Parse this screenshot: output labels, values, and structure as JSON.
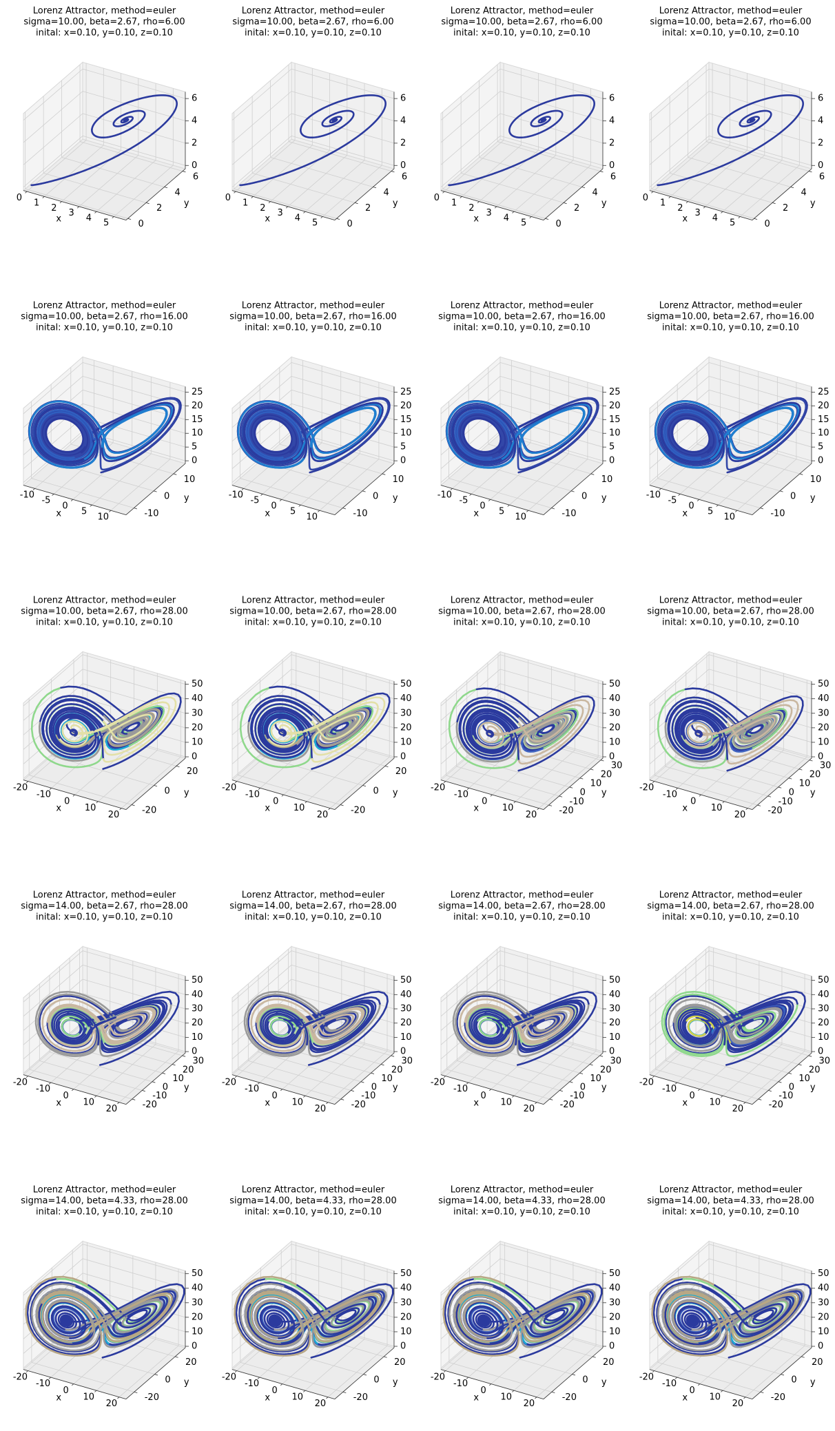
{
  "chart_data": [
    {
      "type": "line3d",
      "title": [
        "Lorenz Attractor, method=euler",
        "sigma=10.00, beta=2.67, rho=6.00",
        "inital: x=0.10, y=0.10, z=0.10"
      ],
      "xlabel": "x",
      "ylabel": "y",
      "params": {
        "sigma": 10,
        "beta": 2.67,
        "rho": 6,
        "x0": 0.1,
        "y0": 0.1,
        "z0": 0.1
      },
      "xlim": [
        -0.2,
        5.7
      ],
      "ylim": [
        -0.2,
        6.3
      ],
      "zlim": [
        -0.3,
        6.6
      ],
      "xticks": [
        0,
        1,
        2,
        3,
        4,
        5
      ],
      "yticks": [
        0,
        2,
        4,
        6
      ],
      "zticks": [
        0,
        2,
        4,
        6
      ],
      "colors": [
        "#2b3a9e",
        "#3347a8",
        "#3f63c0",
        "#2b3a9e"
      ]
    },
    {
      "type": "line3d",
      "title": [
        "Lorenz Attractor, method=euler",
        "sigma=10.00, beta=2.67, rho=6.00",
        "inital: x=0.10, y=0.10, z=0.10"
      ],
      "xlabel": "x",
      "ylabel": "y",
      "params": {
        "sigma": 10,
        "beta": 2.67,
        "rho": 6,
        "x0": 0.1,
        "y0": 0.1,
        "z0": 0.1
      },
      "xlim": [
        -0.2,
        5.7
      ],
      "ylim": [
        -0.2,
        6.3
      ],
      "zlim": [
        -0.3,
        6.6
      ],
      "xticks": [
        0,
        1,
        2,
        3,
        4,
        5
      ],
      "yticks": [
        0,
        2,
        4,
        6
      ],
      "zticks": [
        0,
        2,
        4,
        6
      ],
      "colors": [
        "#2b3a9e",
        "#3347a8",
        "#3f63c0",
        "#2b3a9e"
      ]
    },
    {
      "type": "line3d",
      "title": [
        "Lorenz Attractor, method=euler",
        "sigma=10.00, beta=2.67, rho=6.00",
        "inital: x=0.10, y=0.10, z=0.10"
      ],
      "xlabel": "x",
      "ylabel": "y",
      "params": {
        "sigma": 10,
        "beta": 2.67,
        "rho": 6,
        "x0": 0.1,
        "y0": 0.1,
        "z0": 0.1
      },
      "xlim": [
        -0.2,
        5.7
      ],
      "ylim": [
        -0.2,
        6.3
      ],
      "zlim": [
        -0.3,
        6.6
      ],
      "xticks": [
        0,
        1,
        2,
        3,
        4,
        5
      ],
      "yticks": [
        0,
        2,
        4,
        6
      ],
      "zticks": [
        0,
        2,
        4,
        6
      ],
      "colors": [
        "#2b3a9e",
        "#3347a8",
        "#3f63c0",
        "#2b3a9e"
      ]
    },
    {
      "type": "line3d",
      "title": [
        "Lorenz Attractor, method=euler",
        "sigma=10.00, beta=2.67, rho=6.00",
        "inital: x=0.10, y=0.10, z=0.10"
      ],
      "xlabel": "x",
      "ylabel": "y",
      "params": {
        "sigma": 10,
        "beta": 2.67,
        "rho": 6,
        "x0": 0.1,
        "y0": 0.1,
        "z0": 0.1
      },
      "xlim": [
        -0.2,
        5.7
      ],
      "ylim": [
        -0.2,
        6.3
      ],
      "zlim": [
        -0.3,
        6.6
      ],
      "xticks": [
        0,
        1,
        2,
        3,
        4,
        5
      ],
      "yticks": [
        0,
        2,
        4,
        6
      ],
      "zticks": [
        0,
        2,
        4,
        6
      ],
      "colors": [
        "#2b3a9e",
        "#3347a8",
        "#3f63c0",
        "#2b3a9e"
      ]
    },
    {
      "type": "line3d",
      "title": [
        "Lorenz Attractor, method=euler",
        "sigma=10.00, beta=2.67, rho=16.00",
        "inital: x=0.10, y=0.10, z=0.10"
      ],
      "xlabel": "x",
      "ylabel": "y",
      "params": {
        "sigma": 10,
        "beta": 2.67,
        "rho": 16,
        "x0": 0.1,
        "y0": 0.1,
        "z0": 0.1
      },
      "xlim": [
        -13,
        14
      ],
      "ylim": [
        -14,
        16
      ],
      "zlim": [
        -1,
        27
      ],
      "xticks": [
        -10,
        -5,
        0,
        5,
        10
      ],
      "yticks": [
        -10,
        0,
        10
      ],
      "zticks": [
        0,
        5,
        10,
        15,
        20,
        25
      ],
      "colors": [
        "#2b3a9e",
        "#3347a8",
        "#2f5ebf",
        "#1f7fd0"
      ]
    },
    {
      "type": "line3d",
      "title": [
        "Lorenz Attractor, method=euler",
        "sigma=10.00, beta=2.67, rho=16.00",
        "inital: x=0.10, y=0.10, z=0.10"
      ],
      "xlabel": "x",
      "ylabel": "y",
      "params": {
        "sigma": 10,
        "beta": 2.67,
        "rho": 16,
        "x0": 0.1,
        "y0": 0.1,
        "z0": 0.1
      },
      "xlim": [
        -13,
        14
      ],
      "ylim": [
        -14,
        16
      ],
      "zlim": [
        -1,
        27
      ],
      "xticks": [
        -10,
        -5,
        0,
        5,
        10
      ],
      "yticks": [
        -10,
        0,
        10
      ],
      "zticks": [
        0,
        5,
        10,
        15,
        20,
        25
      ],
      "colors": [
        "#2b3a9e",
        "#3347a8",
        "#2f5ebf",
        "#1f7fd0"
      ]
    },
    {
      "type": "line3d",
      "title": [
        "Lorenz Attractor, method=euler",
        "sigma=10.00, beta=2.67, rho=16.00",
        "inital: x=0.10, y=0.10, z=0.10"
      ],
      "xlabel": "x",
      "ylabel": "y",
      "params": {
        "sigma": 10,
        "beta": 2.67,
        "rho": 16,
        "x0": 0.1,
        "y0": 0.1,
        "z0": 0.1
      },
      "xlim": [
        -13,
        14
      ],
      "ylim": [
        -14,
        16
      ],
      "zlim": [
        -1,
        27
      ],
      "xticks": [
        -10,
        -5,
        0,
        5,
        10
      ],
      "yticks": [
        -10,
        0,
        10
      ],
      "zticks": [
        0,
        5,
        10,
        15,
        20,
        25
      ],
      "colors": [
        "#2b3a9e",
        "#3347a8",
        "#2f5ebf",
        "#1f7fd0"
      ]
    },
    {
      "type": "line3d",
      "title": [
        "Lorenz Attractor, method=euler",
        "sigma=10.00, beta=2.67, rho=16.00",
        "inital: x=0.10, y=0.10, z=0.10"
      ],
      "xlabel": "x",
      "ylabel": "y",
      "params": {
        "sigma": 10,
        "beta": 2.67,
        "rho": 16,
        "x0": 0.1,
        "y0": 0.1,
        "z0": 0.1
      },
      "xlim": [
        -13,
        14
      ],
      "ylim": [
        -14,
        16
      ],
      "zlim": [
        -1,
        27
      ],
      "xticks": [
        -10,
        -5,
        0,
        5,
        10
      ],
      "yticks": [
        -10,
        0,
        10
      ],
      "zticks": [
        0,
        5,
        10,
        15,
        20,
        25
      ],
      "colors": [
        "#2b3a9e",
        "#3347a8",
        "#2f5ebf",
        "#1f7fd0"
      ]
    },
    {
      "type": "line3d",
      "title": [
        "Lorenz Attractor, method=euler",
        "sigma=10.00, beta=2.67, rho=28.00",
        "inital: x=0.10, y=0.10, z=0.10"
      ],
      "xlabel": "x",
      "ylabel": "y",
      "params": {
        "sigma": 10,
        "beta": 2.67,
        "rho": 28,
        "x0": 0.1,
        "y0": 0.1,
        "z0": 0.1
      },
      "xlim": [
        -22,
        22
      ],
      "ylim": [
        -25,
        28
      ],
      "zlim": [
        -1,
        52
      ],
      "xticks": [
        -20,
        -10,
        0,
        10,
        20
      ],
      "yticks": [
        -20,
        0,
        20
      ],
      "zticks": [
        0,
        10,
        20,
        30,
        40,
        50
      ],
      "colors": [
        "#2b3a9e",
        "#1ba9d4",
        "#8fd88c",
        "#b8a785",
        "#9a9a9a",
        "#e3e0a8"
      ]
    },
    {
      "type": "line3d",
      "title": [
        "Lorenz Attractor, method=euler",
        "sigma=10.00, beta=2.67, rho=28.00",
        "inital: x=0.10, y=0.10, z=0.10"
      ],
      "xlabel": "x",
      "ylabel": "y",
      "params": {
        "sigma": 10,
        "beta": 2.67,
        "rho": 28,
        "x0": 0.1,
        "y0": 0.1,
        "z0": 0.1
      },
      "xlim": [
        -22,
        22
      ],
      "ylim": [
        -25,
        28
      ],
      "zlim": [
        -1,
        52
      ],
      "xticks": [
        -20,
        -10,
        0,
        10,
        20
      ],
      "yticks": [
        -20,
        0,
        20
      ],
      "zticks": [
        0,
        10,
        20,
        30,
        40,
        50
      ],
      "colors": [
        "#2b3a9e",
        "#1ba9d4",
        "#8fd88c",
        "#b8a785",
        "#9a9a9a",
        "#e3e0a8"
      ]
    },
    {
      "type": "line3d",
      "title": [
        "Lorenz Attractor, method=euler",
        "sigma=10.00, beta=2.67, rho=28.00",
        "inital: x=0.10, y=0.10, z=0.10"
      ],
      "xlabel": "x",
      "ylabel": "y",
      "params": {
        "sigma": 10,
        "beta": 2.67,
        "rho": 28,
        "x0": 0.1,
        "y0": 0.1,
        "z0": 0.1
      },
      "xlim": [
        -22,
        22
      ],
      "ylim": [
        -25,
        32
      ],
      "zlim": [
        -1,
        52
      ],
      "xticks": [
        -20,
        -10,
        0,
        10,
        20
      ],
      "yticks": [
        -20,
        -10,
        0,
        10,
        20,
        30
      ],
      "zticks": [
        0,
        10,
        20,
        30,
        40,
        50
      ],
      "colors": [
        "#2b3a9e",
        "#3f63c0",
        "#8fd88c",
        "#b8d8a0",
        "#9a9a9a",
        "#c9b7a0"
      ]
    },
    {
      "type": "line3d",
      "title": [
        "Lorenz Attractor, method=euler",
        "sigma=10.00, beta=2.67, rho=28.00",
        "inital: x=0.10, y=0.10, z=0.10"
      ],
      "xlabel": "x",
      "ylabel": "y",
      "params": {
        "sigma": 10,
        "beta": 2.67,
        "rho": 28,
        "x0": 0.1,
        "y0": 0.1,
        "z0": 0.1
      },
      "xlim": [
        -22,
        22
      ],
      "ylim": [
        -25,
        32
      ],
      "zlim": [
        -1,
        52
      ],
      "xticks": [
        -20,
        -10,
        0,
        10,
        20
      ],
      "yticks": [
        -20,
        -10,
        0,
        10,
        20,
        30
      ],
      "zticks": [
        0,
        10,
        20,
        30,
        40,
        50
      ],
      "colors": [
        "#2b3a9e",
        "#3f63c0",
        "#8fd88c",
        "#b8d8a0",
        "#9a9a9a",
        "#c9b7a0"
      ]
    },
    {
      "type": "line3d",
      "title": [
        "Lorenz Attractor, method=euler",
        "sigma=14.00, beta=2.67, rho=28.00",
        "inital: x=0.10, y=0.10, z=0.10"
      ],
      "xlabel": "x",
      "ylabel": "y",
      "params": {
        "sigma": 14,
        "beta": 2.67,
        "rho": 28,
        "x0": 0.1,
        "y0": 0.1,
        "z0": 0.1
      },
      "xlim": [
        -22,
        23
      ],
      "ylim": [
        -26,
        33
      ],
      "zlim": [
        -1,
        53
      ],
      "xticks": [
        -20,
        -10,
        0,
        10,
        20
      ],
      "yticks": [
        -20,
        -10,
        0,
        10,
        20,
        30
      ],
      "zticks": [
        0,
        10,
        20,
        30,
        40,
        50
      ],
      "colors": [
        "#2b3a9e",
        "#3f63c0",
        "#8fd88c",
        "#9a9a9a",
        "#b8d8a0",
        "#c9b7a0"
      ]
    },
    {
      "type": "line3d",
      "title": [
        "Lorenz Attractor, method=euler",
        "sigma=14.00, beta=2.67, rho=28.00",
        "inital: x=0.10, y=0.10, z=0.10"
      ],
      "xlabel": "x",
      "ylabel": "y",
      "params": {
        "sigma": 14,
        "beta": 2.67,
        "rho": 28,
        "x0": 0.1,
        "y0": 0.1,
        "z0": 0.1
      },
      "xlim": [
        -22,
        23
      ],
      "ylim": [
        -26,
        33
      ],
      "zlim": [
        -1,
        53
      ],
      "xticks": [
        -20,
        -10,
        0,
        10,
        20
      ],
      "yticks": [
        -20,
        -10,
        0,
        10,
        20,
        30
      ],
      "zticks": [
        0,
        10,
        20,
        30,
        40,
        50
      ],
      "colors": [
        "#2b3a9e",
        "#3f63c0",
        "#8fd88c",
        "#9a9a9a",
        "#b8d8a0",
        "#c9b7a0"
      ]
    },
    {
      "type": "line3d",
      "title": [
        "Lorenz Attractor, method=euler",
        "sigma=14.00, beta=2.67, rho=28.00",
        "inital: x=0.10, y=0.10, z=0.10"
      ],
      "xlabel": "x",
      "ylabel": "y",
      "params": {
        "sigma": 14,
        "beta": 2.67,
        "rho": 28,
        "x0": 0.1,
        "y0": 0.1,
        "z0": 0.1
      },
      "xlim": [
        -22,
        23
      ],
      "ylim": [
        -26,
        33
      ],
      "zlim": [
        -1,
        53
      ],
      "xticks": [
        -20,
        -10,
        0,
        10,
        20
      ],
      "yticks": [
        -20,
        -10,
        0,
        10,
        20,
        30
      ],
      "zticks": [
        0,
        10,
        20,
        30,
        40,
        50
      ],
      "colors": [
        "#2b3a9e",
        "#3f63c0",
        "#8fd88c",
        "#9a9a9a",
        "#b8d8a0",
        "#c9b7a0"
      ]
    },
    {
      "type": "line3d",
      "title": [
        "Lorenz Attractor, method=euler",
        "sigma=14.00, beta=2.67, rho=28.00",
        "inital: x=0.10, y=0.10, z=0.10"
      ],
      "xlabel": "x",
      "ylabel": "y",
      "params": {
        "sigma": 14,
        "beta": 2.67,
        "rho": 28,
        "x0": 0.1,
        "y0": 0.1,
        "z0": 0.1
      },
      "xlim": [
        -22,
        23
      ],
      "ylim": [
        -26,
        33
      ],
      "zlim": [
        -1,
        53
      ],
      "xticks": [
        -20,
        -10,
        0,
        10,
        20
      ],
      "yticks": [
        -20,
        -10,
        0,
        10,
        20,
        30
      ],
      "zticks": [
        0,
        10,
        20,
        30,
        40,
        50
      ],
      "colors": [
        "#2b3a9e",
        "#1ba9d4",
        "#d4d44a",
        "#8fd88c",
        "#3f63c0",
        "#9a9a9a"
      ]
    },
    {
      "type": "line3d",
      "title": [
        "Lorenz Attractor, method=euler",
        "sigma=14.00, beta=4.33, rho=28.00",
        "inital: x=0.10, y=0.10, z=0.10"
      ],
      "xlabel": "x",
      "ylabel": "y",
      "params": {
        "sigma": 14,
        "beta": 4.33,
        "rho": 28,
        "x0": 0.1,
        "y0": 0.1,
        "z0": 0.1
      },
      "xlim": [
        -22,
        23
      ],
      "ylim": [
        -28,
        30
      ],
      "zlim": [
        -1,
        52
      ],
      "xticks": [
        -20,
        -10,
        0,
        10,
        20
      ],
      "yticks": [
        -20,
        0,
        20
      ],
      "zticks": [
        0,
        10,
        20,
        30,
        40,
        50
      ],
      "colors": [
        "#2b3a9e",
        "#3f63c0",
        "#1ba9d4",
        "#8fd88c",
        "#b8a785",
        "#9a9a9a"
      ]
    },
    {
      "type": "line3d",
      "title": [
        "Lorenz Attractor, method=euler",
        "sigma=14.00, beta=4.33, rho=28.00",
        "inital: x=0.10, y=0.10, z=0.10"
      ],
      "xlabel": "x",
      "ylabel": "y",
      "params": {
        "sigma": 14,
        "beta": 4.33,
        "rho": 28,
        "x0": 0.1,
        "y0": 0.1,
        "z0": 0.1
      },
      "xlim": [
        -22,
        23
      ],
      "ylim": [
        -28,
        30
      ],
      "zlim": [
        -1,
        52
      ],
      "xticks": [
        -20,
        -10,
        0,
        10,
        20
      ],
      "yticks": [
        -20,
        0,
        20
      ],
      "zticks": [
        0,
        10,
        20,
        30,
        40,
        50
      ],
      "colors": [
        "#2b3a9e",
        "#3f63c0",
        "#1ba9d4",
        "#8fd88c",
        "#b8a785",
        "#9a9a9a"
      ]
    },
    {
      "type": "line3d",
      "title": [
        "Lorenz Attractor, method=euler",
        "sigma=14.00, beta=4.33, rho=28.00",
        "inital: x=0.10, y=0.10, z=0.10"
      ],
      "xlabel": "x",
      "ylabel": "y",
      "params": {
        "sigma": 14,
        "beta": 4.33,
        "rho": 28,
        "x0": 0.1,
        "y0": 0.1,
        "z0": 0.1
      },
      "xlim": [
        -22,
        23
      ],
      "ylim": [
        -28,
        30
      ],
      "zlim": [
        -1,
        52
      ],
      "xticks": [
        -20,
        -10,
        0,
        10,
        20
      ],
      "yticks": [
        -20,
        0,
        20
      ],
      "zticks": [
        0,
        10,
        20,
        30,
        40,
        50
      ],
      "colors": [
        "#2b3a9e",
        "#3f63c0",
        "#1ba9d4",
        "#8fd88c",
        "#b8a785",
        "#9a9a9a"
      ]
    },
    {
      "type": "line3d",
      "title": [
        "Lorenz Attractor, method=euler",
        "sigma=14.00, beta=4.33, rho=28.00",
        "inital: x=0.10, y=0.10, z=0.10"
      ],
      "xlabel": "x",
      "ylabel": "y",
      "params": {
        "sigma": 14,
        "beta": 4.33,
        "rho": 28,
        "x0": 0.1,
        "y0": 0.1,
        "z0": 0.1
      },
      "xlim": [
        -22,
        23
      ],
      "ylim": [
        -28,
        30
      ],
      "zlim": [
        -1,
        52
      ],
      "xticks": [
        -20,
        -10,
        0,
        10,
        20
      ],
      "yticks": [
        -20,
        0,
        20
      ],
      "zticks": [
        0,
        10,
        20,
        30,
        40,
        50
      ],
      "colors": [
        "#2b3a9e",
        "#3f63c0",
        "#1ba9d4",
        "#8fd88c",
        "#b8a785",
        "#9a9a9a"
      ]
    }
  ]
}
